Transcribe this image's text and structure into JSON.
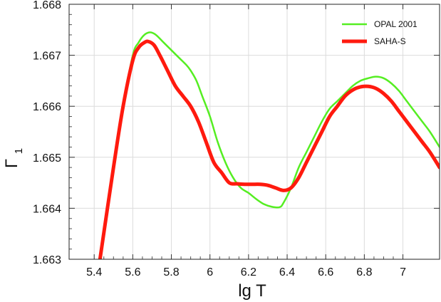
{
  "chart_data": {
    "type": "line",
    "title": "",
    "xlabel": "lg T",
    "ylabel_base": "Γ",
    "ylabel_sub": "1",
    "xlim": [
      5.27,
      7.19
    ],
    "ylim": [
      1.663,
      1.668
    ],
    "grid": true,
    "legend_position": "top-right",
    "x_ticks": [
      5.4,
      5.6,
      5.8,
      6.0,
      6.2,
      6.4,
      6.6,
      6.8,
      7.0
    ],
    "x_tick_labels": [
      "5.4",
      "5.6",
      "5.8",
      "6",
      "6.2",
      "6.4",
      "6.6",
      "6.8",
      "7"
    ],
    "y_ticks": [
      1.663,
      1.664,
      1.665,
      1.666,
      1.667,
      1.668
    ],
    "y_tick_labels": [
      "1.663",
      "1.664",
      "1.665",
      "1.666",
      "1.667",
      "1.668"
    ],
    "series": [
      {
        "name": "OPAL 2001",
        "color": "#55ee22",
        "x": [
          5.43,
          5.5,
          5.55,
          5.6,
          5.63,
          5.66,
          5.69,
          5.72,
          5.76,
          5.8,
          5.84,
          5.88,
          5.9,
          5.93,
          5.96,
          6.0,
          6.04,
          6.08,
          6.12,
          6.16,
          6.2,
          6.24,
          6.28,
          6.32,
          6.36,
          6.38,
          6.42,
          6.46,
          6.5,
          6.54,
          6.58,
          6.62,
          6.66,
          6.7,
          6.74,
          6.78,
          6.82,
          6.86,
          6.9,
          6.94,
          6.98,
          7.02,
          7.06,
          7.1,
          7.14,
          7.19
        ],
        "y": [
          1.663,
          1.6648,
          1.666,
          1.667,
          1.66725,
          1.6674,
          1.66745,
          1.6674,
          1.66725,
          1.6671,
          1.66695,
          1.6668,
          1.6667,
          1.6665,
          1.6662,
          1.6658,
          1.6653,
          1.6649,
          1.6646,
          1.6644,
          1.6643,
          1.66418,
          1.66408,
          1.66403,
          1.66402,
          1.6641,
          1.6644,
          1.6648,
          1.6651,
          1.6654,
          1.6657,
          1.66595,
          1.6661,
          1.66625,
          1.6664,
          1.6665,
          1.66655,
          1.66658,
          1.66655,
          1.66645,
          1.6663,
          1.6661,
          1.6659,
          1.6657,
          1.6655,
          1.6652
        ]
      },
      {
        "name": "SAHA-S",
        "color": "#ff1a0e",
        "x": [
          5.43,
          5.5,
          5.55,
          5.6,
          5.63,
          5.66,
          5.68,
          5.71,
          5.74,
          5.78,
          5.82,
          5.86,
          5.9,
          5.94,
          5.98,
          6.02,
          6.06,
          6.1,
          6.14,
          6.18,
          6.22,
          6.26,
          6.3,
          6.34,
          6.38,
          6.42,
          6.46,
          6.5,
          6.54,
          6.58,
          6.62,
          6.66,
          6.7,
          6.74,
          6.78,
          6.82,
          6.86,
          6.9,
          6.94,
          6.98,
          7.02,
          7.06,
          7.1,
          7.14,
          7.19
        ],
        "y": [
          1.663,
          1.6648,
          1.666,
          1.6669,
          1.66715,
          1.66725,
          1.66727,
          1.6672,
          1.667,
          1.6667,
          1.6664,
          1.6662,
          1.666,
          1.6657,
          1.6653,
          1.6649,
          1.6647,
          1.6645,
          1.66448,
          1.66447,
          1.66447,
          1.66447,
          1.66445,
          1.6644,
          1.66435,
          1.6644,
          1.6646,
          1.6649,
          1.6652,
          1.6655,
          1.6658,
          1.666,
          1.6662,
          1.66632,
          1.66638,
          1.66639,
          1.66635,
          1.66625,
          1.6661,
          1.6659,
          1.6657,
          1.6655,
          1.6653,
          1.6651,
          1.6648
        ]
      }
    ]
  }
}
